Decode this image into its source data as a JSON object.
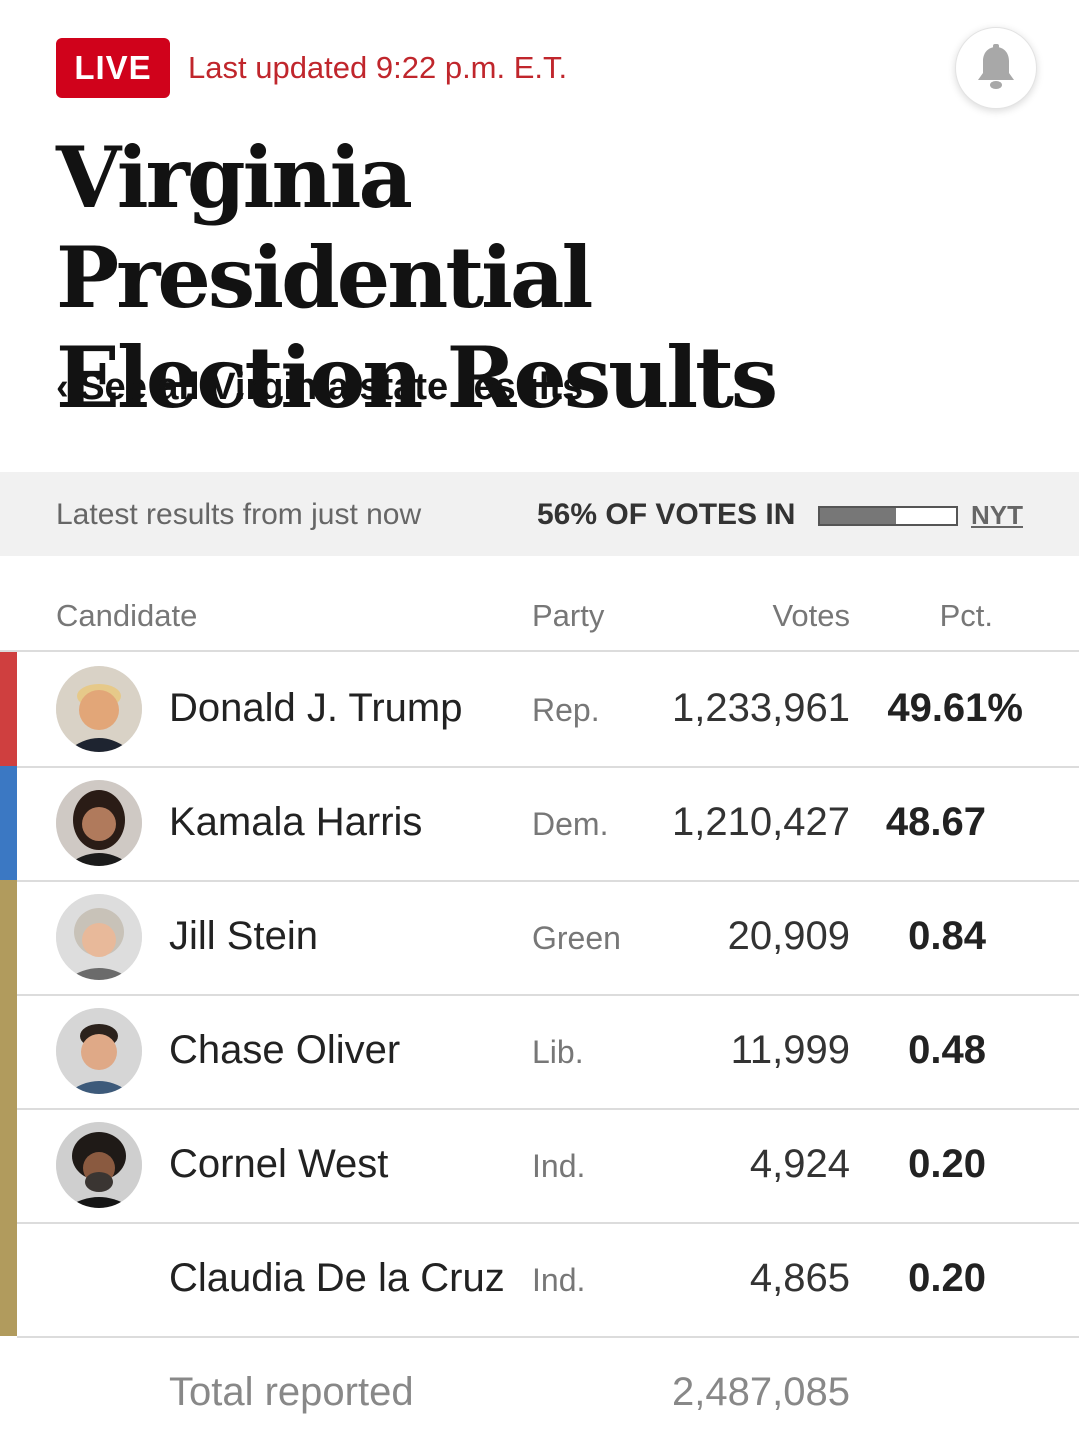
{
  "header": {
    "live_label": "LIVE",
    "updated_text": "Last updated 9:22 p.m. E.T.",
    "title": "Virginia Presidential Election Results",
    "back_link": "‹ See all Virginia state results"
  },
  "status": {
    "latest_text": "Latest results from just now",
    "votes_in_text": "56% OF VOTES IN",
    "votes_in_fraction": 0.56,
    "source_label": "NYT"
  },
  "table": {
    "headers": {
      "candidate": "Candidate",
      "party": "Party",
      "votes": "Votes",
      "pct": "Pct."
    },
    "rows": [
      {
        "name": "Donald J. Trump",
        "party": "Rep.",
        "votes": "1,233,961",
        "pct": "49.61%",
        "color": "#cf3f3f"
      },
      {
        "name": "Kamala Harris",
        "party": "Dem.",
        "votes": "1,210,427",
        "pct": "48.67",
        "color": "#3b78c3"
      },
      {
        "name": "Jill Stein",
        "party": "Green",
        "votes": "20,909",
        "pct": "0.84",
        "color": "#b19b5d"
      },
      {
        "name": "Chase Oliver",
        "party": "Lib.",
        "votes": "11,999",
        "pct": "0.48",
        "color": "#b19b5d"
      },
      {
        "name": "Cornel West",
        "party": "Ind.",
        "votes": "4,924",
        "pct": "0.20",
        "color": "#b19b5d"
      },
      {
        "name": "Claudia De la Cruz",
        "party": "Ind.",
        "votes": "4,865",
        "pct": "0.20",
        "color": "#b19b5d"
      }
    ],
    "total_label": "Total reported",
    "total_votes": "2,487,085"
  },
  "colors": {
    "live_red": "#d0021b",
    "updated_red": "#c0262c"
  },
  "icons": {
    "bell": "bell-icon"
  }
}
